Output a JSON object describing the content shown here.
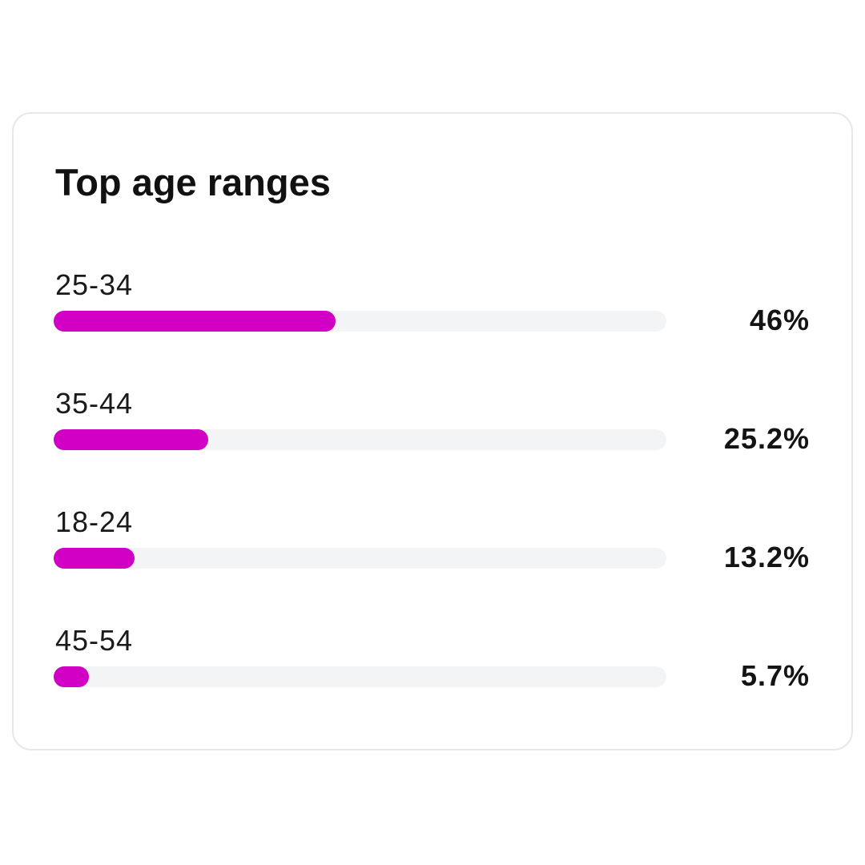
{
  "chart_data": {
    "type": "bar",
    "orientation": "horizontal",
    "title": "Top age ranges",
    "categories": [
      "25-34",
      "35-44",
      "18-24",
      "45-54"
    ],
    "values": [
      46,
      25.2,
      13.2,
      5.7
    ],
    "value_labels": [
      "46%",
      "25.2%",
      "13.2%",
      "5.7%"
    ],
    "unit": "%",
    "xlim": [
      0,
      100
    ],
    "grid": false,
    "legend": "none"
  },
  "colors": {
    "bar_fill": "#d100c4",
    "track": "#f3f4f6",
    "card_border": "#e6e9ea",
    "text": "#141414"
  }
}
